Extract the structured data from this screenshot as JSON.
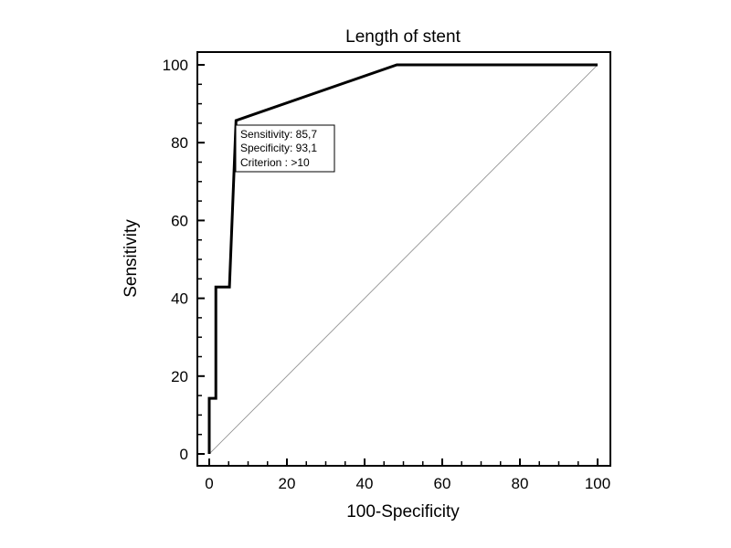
{
  "chart_data": {
    "type": "line",
    "title": "Length of stent",
    "xlabel": "100-Specificity",
    "ylabel": "Sensitivity",
    "xlim": [
      0,
      100
    ],
    "ylim": [
      0,
      100
    ],
    "xticks": [
      0,
      20,
      40,
      60,
      80,
      100
    ],
    "yticks": [
      0,
      20,
      40,
      60,
      80,
      100
    ],
    "xtick_labels": [
      "0",
      "20",
      "40",
      "60",
      "80",
      "100"
    ],
    "ytick_labels": [
      "0",
      "20",
      "40",
      "60",
      "80",
      "100"
    ],
    "grid": false,
    "legend": "none",
    "series": [
      {
        "role": "roc-curve",
        "color": "#000000",
        "x": [
          0,
          0,
          1.7,
          1.7,
          5.2,
          6.9,
          6.9,
          48.3,
          100
        ],
        "y": [
          0,
          14.3,
          14.3,
          42.9,
          42.9,
          85.7,
          85.7,
          100,
          100
        ]
      },
      {
        "role": "reference-diagonal",
        "color": "#888888",
        "x": [
          0,
          100
        ],
        "y": [
          0,
          100
        ]
      }
    ],
    "annotation": {
      "point": [
        6.9,
        85.7
      ],
      "lines": [
        "Sensitivity: 85,7",
        "Specificity: 93,1",
        "Criterion : >10"
      ]
    }
  }
}
